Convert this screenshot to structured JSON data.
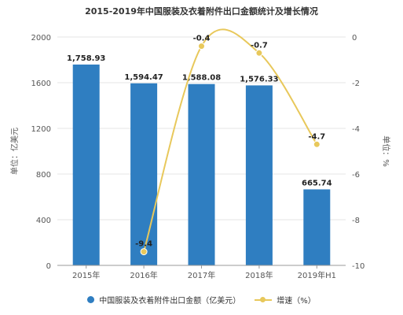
{
  "title": "2015-2019年中国服装及衣着附件出口金额统计及增长情况",
  "colors": {
    "bar": "#2f7ec1",
    "line": "#e8c85b",
    "grid": "#e6e6e6",
    "axis_text": "#555555"
  },
  "chart_data": {
    "type": "bar",
    "categories": [
      "2015年",
      "2016年",
      "2017年",
      "2018年",
      "2019年H1"
    ],
    "ylabel": "单位：亿美元",
    "ylim": [
      0,
      2000
    ],
    "yticks": [
      "0",
      "400",
      "800",
      "1200",
      "1600",
      "2000"
    ],
    "y2label": "单位：%",
    "y2lim": [
      -10,
      0
    ],
    "y2ticks": [
      "0",
      "-2",
      "-4",
      "-6",
      "-8",
      "-10"
    ],
    "grid": true,
    "legend_position": "bottom",
    "series": [
      {
        "name": "中国服装及衣着附件出口金额（亿美元）",
        "type": "bar",
        "axis": "left",
        "values": [
          1758.93,
          1594.47,
          1588.08,
          1576.33,
          665.74
        ],
        "labels": [
          "1,758.93",
          "1,594.47",
          "1,588.08",
          "1,576.33",
          "665.74"
        ]
      },
      {
        "name": "增速（%）",
        "type": "line",
        "axis": "right",
        "values": [
          null,
          -9.4,
          -0.4,
          -0.7,
          -4.7
        ],
        "labels": [
          "",
          "-9.4",
          "-0.4",
          "-0.7",
          "-4.7"
        ]
      }
    ]
  }
}
